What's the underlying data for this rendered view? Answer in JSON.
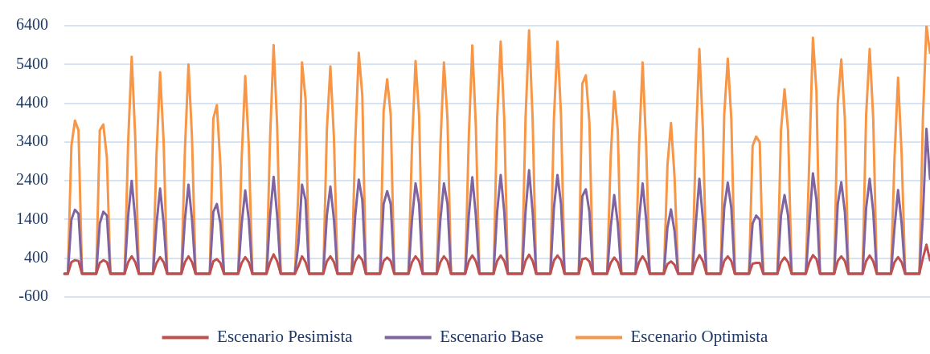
{
  "chart_data": {
    "type": "line",
    "categories": [
      null,
      null,
      null,
      null,
      null,
      null,
      null,
      null,
      null,
      null,
      null,
      null,
      null,
      null,
      null,
      null,
      null,
      null,
      null,
      null,
      null,
      null,
      null,
      null,
      null,
      null,
      null,
      null,
      null,
      null,
      null,
      null,
      null,
      null,
      null,
      null,
      null,
      null,
      null,
      null,
      null,
      null,
      null,
      null,
      null,
      null,
      null,
      null,
      null,
      null,
      null,
      null,
      null,
      null,
      null,
      null,
      null,
      null,
      null,
      null,
      null,
      null,
      null,
      null,
      null,
      null,
      null,
      null,
      null,
      null,
      null,
      null,
      null,
      null,
      null,
      null,
      null,
      null,
      null,
      null,
      null,
      null,
      null,
      null,
      null,
      null,
      null,
      null,
      null,
      null,
      null,
      null,
      null,
      null,
      null,
      null,
      null,
      null,
      null,
      null,
      null,
      null,
      null,
      null,
      null,
      null,
      null,
      null,
      null,
      null,
      null,
      null,
      null,
      null,
      null,
      null,
      null,
      null,
      null,
      null,
      null,
      null,
      null,
      null,
      null,
      null,
      null,
      null,
      null,
      null,
      null,
      null,
      null,
      null,
      null,
      null,
      null,
      null,
      null,
      null,
      null,
      null,
      null,
      null,
      null,
      null,
      null,
      null,
      null,
      null,
      null,
      null,
      null,
      null,
      null,
      null,
      null,
      null,
      null,
      null,
      null,
      null,
      null,
      null,
      null,
      null,
      null,
      null,
      null,
      null,
      null,
      null,
      null,
      null,
      null,
      null,
      null,
      null,
      null,
      null,
      null,
      null,
      null,
      null,
      null,
      null,
      null,
      null,
      null,
      null,
      null,
      null,
      null,
      null,
      null,
      null,
      null,
      null,
      null,
      null,
      null,
      null,
      null,
      null,
      null,
      null,
      null,
      null,
      null,
      null,
      null,
      null,
      null,
      null,
      null,
      null,
      null,
      null,
      null,
      null,
      null,
      null,
      null,
      null,
      null,
      null,
      null,
      null,
      null,
      null,
      null,
      null,
      null,
      null,
      null,
      null,
      null,
      null,
      null,
      null,
      null,
      null,
      null,
      null,
      null
    ],
    "series": [
      {
        "name": "Escenario Pesimista",
        "color": "#c0504d",
        "values": [
          0,
          0,
          300,
          350,
          330,
          0,
          0,
          0,
          0,
          0,
          280,
          350,
          300,
          0,
          0,
          0,
          0,
          0,
          300,
          450,
          300,
          0,
          0,
          0,
          0,
          0,
          280,
          430,
          300,
          0,
          0,
          0,
          0,
          0,
          300,
          450,
          300,
          0,
          0,
          0,
          0,
          0,
          320,
          380,
          280,
          0,
          0,
          0,
          0,
          0,
          280,
          430,
          300,
          0,
          0,
          0,
          0,
          0,
          300,
          500,
          320,
          0,
          0,
          0,
          0,
          0,
          200,
          450,
          300,
          0,
          0,
          0,
          0,
          0,
          320,
          450,
          300,
          0,
          0,
          0,
          0,
          0,
          320,
          470,
          350,
          0,
          0,
          0,
          0,
          0,
          330,
          420,
          330,
          0,
          0,
          0,
          0,
          0,
          300,
          450,
          330,
          0,
          0,
          0,
          0,
          0,
          300,
          450,
          330,
          0,
          0,
          0,
          0,
          0,
          320,
          470,
          320,
          0,
          0,
          0,
          0,
          0,
          330,
          470,
          330,
          0,
          0,
          0,
          0,
          0,
          330,
          490,
          330,
          0,
          0,
          0,
          0,
          0,
          340,
          470,
          350,
          0,
          0,
          0,
          0,
          0,
          380,
          400,
          320,
          0,
          0,
          0,
          0,
          0,
          280,
          420,
          300,
          0,
          0,
          0,
          0,
          0,
          300,
          450,
          300,
          0,
          0,
          0,
          0,
          0,
          250,
          320,
          230,
          0,
          0,
          0,
          0,
          0,
          300,
          480,
          320,
          0,
          0,
          0,
          0,
          0,
          330,
          450,
          330,
          0,
          0,
          0,
          0,
          0,
          260,
          280,
          280,
          0,
          0,
          0,
          0,
          0,
          300,
          420,
          300,
          0,
          0,
          0,
          0,
          0,
          300,
          480,
          380,
          0,
          0,
          0,
          0,
          0,
          330,
          450,
          330,
          0,
          0,
          0,
          0,
          0,
          330,
          470,
          320,
          0,
          0,
          0,
          0,
          0,
          300,
          430,
          300,
          0,
          0,
          0,
          0,
          0,
          400,
          750,
          350
        ]
      },
      {
        "name": "Escenario Base",
        "color": "#8064a2",
        "values": [
          0,
          0,
          1400,
          1650,
          1550,
          0,
          0,
          0,
          0,
          0,
          1300,
          1600,
          1500,
          0,
          0,
          0,
          0,
          0,
          1500,
          2400,
          1400,
          0,
          0,
          0,
          0,
          0,
          1300,
          2200,
          1300,
          0,
          0,
          0,
          0,
          0,
          1400,
          2300,
          1400,
          0,
          0,
          0,
          0,
          0,
          1600,
          1800,
          1300,
          0,
          0,
          0,
          0,
          0,
          1300,
          2150,
          1400,
          0,
          0,
          0,
          0,
          0,
          1500,
          2500,
          1500,
          0,
          0,
          0,
          0,
          0,
          800,
          2300,
          1900,
          0,
          0,
          0,
          0,
          0,
          1500,
          2250,
          1400,
          0,
          0,
          0,
          0,
          0,
          1500,
          2430,
          1900,
          0,
          0,
          0,
          0,
          0,
          1800,
          2130,
          1800,
          0,
          0,
          0,
          0,
          0,
          1400,
          2330,
          1800,
          0,
          0,
          0,
          0,
          0,
          1400,
          2330,
          1800,
          0,
          0,
          0,
          0,
          0,
          1500,
          2490,
          1500,
          0,
          0,
          0,
          0,
          0,
          1600,
          2550,
          1600,
          0,
          0,
          0,
          0,
          0,
          1600,
          2670,
          1600,
          0,
          0,
          0,
          0,
          0,
          1700,
          2550,
          1800,
          0,
          0,
          0,
          0,
          0,
          2000,
          2180,
          1600,
          0,
          0,
          0,
          0,
          0,
          1200,
          2030,
          1300,
          0,
          0,
          0,
          0,
          0,
          1400,
          2330,
          1400,
          0,
          0,
          0,
          0,
          0,
          1200,
          1660,
          1100,
          0,
          0,
          0,
          0,
          0,
          1300,
          2450,
          1400,
          0,
          0,
          0,
          0,
          0,
          1700,
          2350,
          1700,
          0,
          0,
          0,
          0,
          0,
          1300,
          1500,
          1400,
          0,
          0,
          0,
          0,
          0,
          1500,
          2030,
          1500,
          0,
          0,
          0,
          0,
          0,
          1300,
          2590,
          1900,
          0,
          0,
          0,
          0,
          0,
          1800,
          2360,
          1600,
          0,
          0,
          0,
          0,
          0,
          1700,
          2450,
          1600,
          0,
          0,
          0,
          0,
          0,
          1200,
          2160,
          1300,
          0,
          0,
          0,
          0,
          0,
          1500,
          3740,
          2450
        ]
      },
      {
        "name": "Escenario Optimista",
        "color": "#f79646",
        "values": [
          0,
          0,
          3300,
          3950,
          3700,
          0,
          0,
          0,
          0,
          0,
          3700,
          3850,
          3000,
          0,
          0,
          0,
          0,
          0,
          3400,
          5600,
          3500,
          0,
          0,
          0,
          0,
          0,
          3100,
          5200,
          3400,
          0,
          0,
          0,
          0,
          0,
          3200,
          5400,
          3500,
          0,
          0,
          0,
          0,
          0,
          4000,
          4350,
          2800,
          0,
          0,
          0,
          0,
          0,
          3000,
          5100,
          3300,
          0,
          0,
          0,
          0,
          0,
          3500,
          5900,
          3800,
          0,
          0,
          0,
          0,
          0,
          2200,
          5450,
          4500,
          0,
          0,
          0,
          0,
          0,
          3700,
          5350,
          3500,
          0,
          0,
          0,
          0,
          0,
          3400,
          5700,
          4600,
          0,
          0,
          0,
          0,
          0,
          4200,
          5020,
          4100,
          0,
          0,
          0,
          0,
          0,
          3300,
          5490,
          4100,
          0,
          0,
          0,
          0,
          0,
          3300,
          5450,
          4000,
          0,
          0,
          0,
          0,
          0,
          3500,
          5890,
          3800,
          0,
          0,
          0,
          0,
          0,
          4000,
          5990,
          4000,
          0,
          0,
          0,
          0,
          0,
          4000,
          6280,
          4000,
          0,
          0,
          0,
          0,
          0,
          4000,
          5990,
          4100,
          0,
          0,
          0,
          0,
          0,
          4900,
          5120,
          3900,
          0,
          0,
          0,
          0,
          0,
          3000,
          4700,
          3700,
          0,
          0,
          0,
          0,
          0,
          3300,
          5450,
          3300,
          0,
          0,
          0,
          0,
          0,
          2800,
          3890,
          2500,
          0,
          0,
          0,
          0,
          0,
          3400,
          5800,
          3700,
          0,
          0,
          0,
          0,
          0,
          4100,
          5550,
          4000,
          0,
          0,
          0,
          0,
          0,
          3300,
          3540,
          3400,
          0,
          0,
          0,
          0,
          0,
          3700,
          4760,
          3700,
          0,
          0,
          0,
          0,
          0,
          3000,
          6090,
          4700,
          0,
          0,
          0,
          0,
          0,
          4400,
          5530,
          4000,
          0,
          0,
          0,
          0,
          0,
          4100,
          5800,
          4000,
          0,
          0,
          0,
          0,
          0,
          3000,
          5060,
          3100,
          0,
          0,
          0,
          0,
          0,
          4000,
          6400,
          5700
        ]
      }
    ],
    "ylim": [
      -600,
      6400
    ],
    "yticks": [
      -600,
      400,
      1400,
      2400,
      3400,
      4400,
      5400,
      6400
    ],
    "grid": "y",
    "legend": "bottom",
    "marker": "none",
    "line_style": "solid",
    "tick_labels": "y"
  }
}
